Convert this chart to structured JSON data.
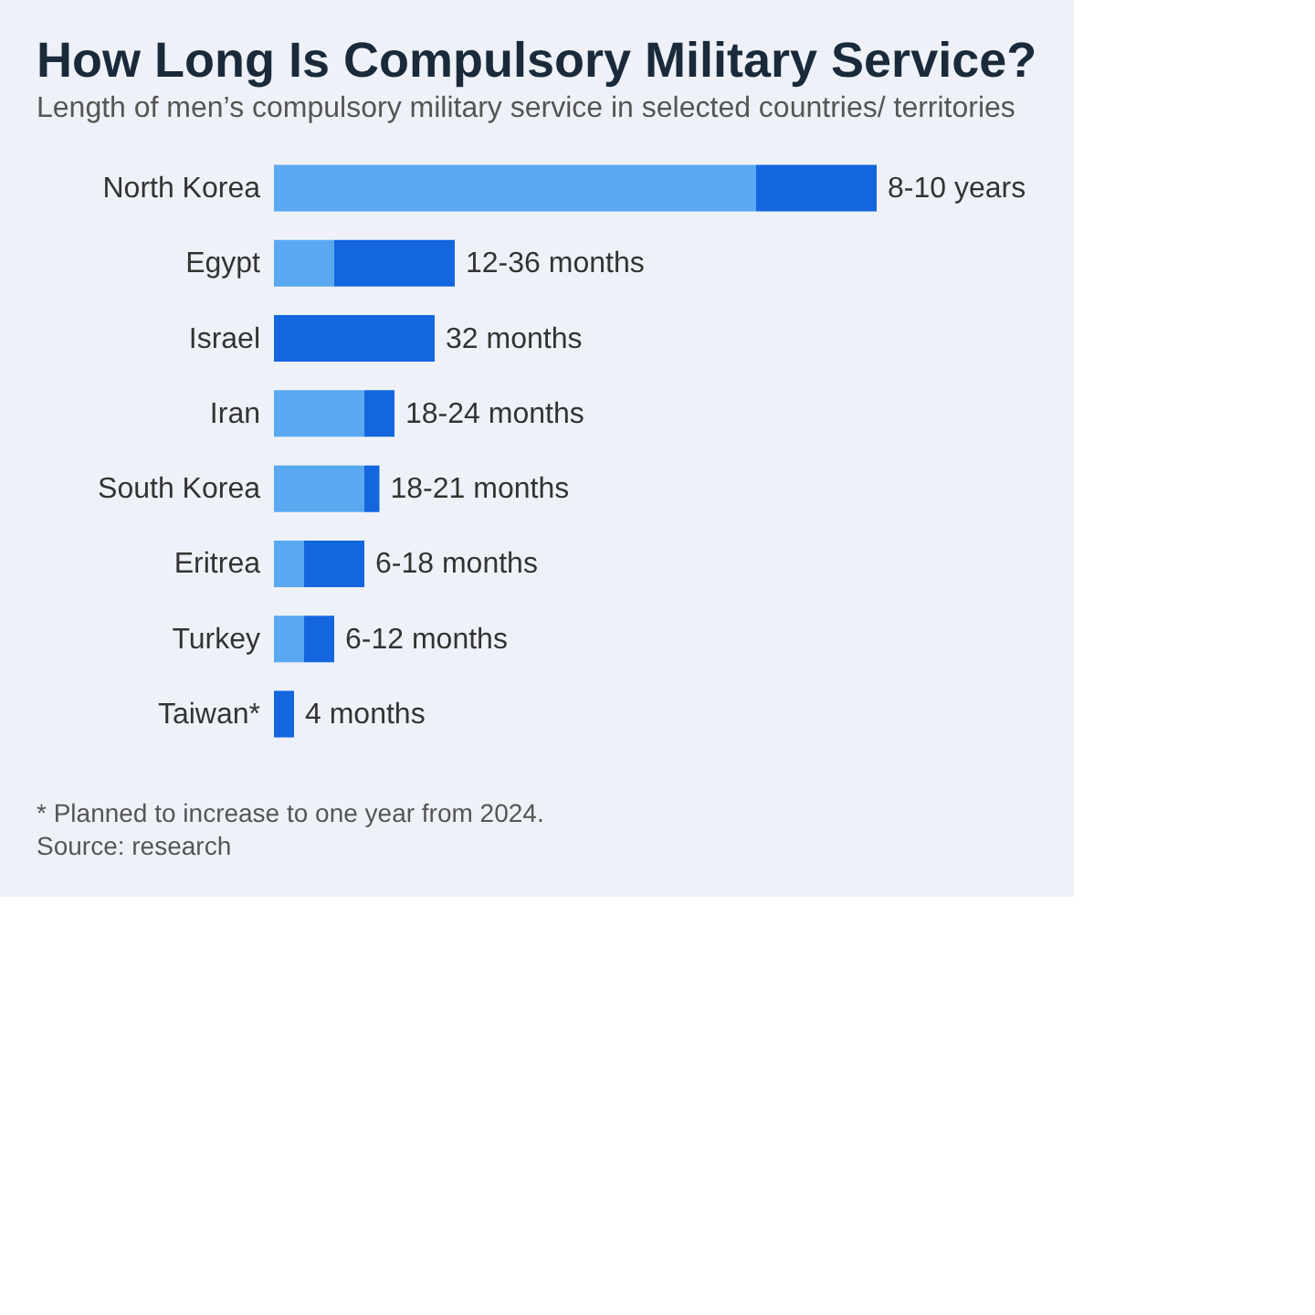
{
  "chart_data": {
    "type": "bar",
    "orientation": "horizontal",
    "stacked": true,
    "title": "How Long Is Compulsory Military Service?",
    "subtitle": "Length of men’s compulsory military service in selected countries/ territories",
    "categories": [
      "North Korea",
      "Egypt",
      "Israel",
      "Iran",
      "South Korea",
      "Eritrea",
      "Turkey",
      "Taiwan*"
    ],
    "series": [
      {
        "color": "#5aa8f0",
        "values": [
          96,
          12,
          null,
          18,
          18,
          6,
          6,
          null
        ]
      },
      {
        "color": "#1466de",
        "values": [
          24,
          24,
          32,
          6,
          3,
          12,
          6,
          4
        ],
        "value_labels": [
          "8-10 years",
          "12-36 months",
          "32 months",
          "18-24 months",
          "18-21 months",
          "6-18 months",
          "6-12 months",
          "4 months"
        ]
      }
    ],
    "annotations": [
      "* Planned to increase to one year from 2024.",
      "Source: research"
    ]
  }
}
